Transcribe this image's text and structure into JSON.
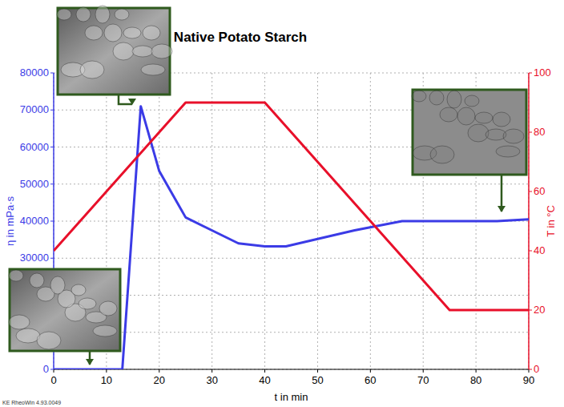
{
  "chart_data": {
    "type": "line",
    "title": "Native Potato Starch",
    "x_label": "t in min",
    "y_label": "η in mPa·s",
    "y2_label": "T in °C",
    "footer": "KE RheoWin 4.93.0049",
    "xlim": [
      0,
      90
    ],
    "xticks": [
      0,
      10,
      20,
      30,
      40,
      50,
      60,
      70,
      80,
      90
    ],
    "ylim": [
      0,
      80000
    ],
    "yticks": [
      0,
      10000,
      20000,
      30000,
      40000,
      50000,
      60000,
      70000,
      80000
    ],
    "y2lim": [
      0,
      100
    ],
    "y2ticks": [
      0,
      20,
      40,
      60,
      80,
      100
    ],
    "grid": true,
    "series": [
      {
        "color": "#3b3be6",
        "axis": "y",
        "x": [
          0,
          13,
          16.5,
          20,
          25,
          35,
          40,
          44,
          50,
          57,
          66,
          75,
          84,
          90
        ],
        "values": [
          0,
          0,
          71000,
          53500,
          41000,
          34000,
          33200,
          33200,
          35200,
          37500,
          40000,
          40000,
          40000,
          40500
        ]
      },
      {
        "color": "#e8102a",
        "axis": "y2",
        "x": [
          0,
          25,
          40,
          75,
          90
        ],
        "values": [
          40,
          90,
          90,
          20,
          20
        ]
      }
    ]
  }
}
